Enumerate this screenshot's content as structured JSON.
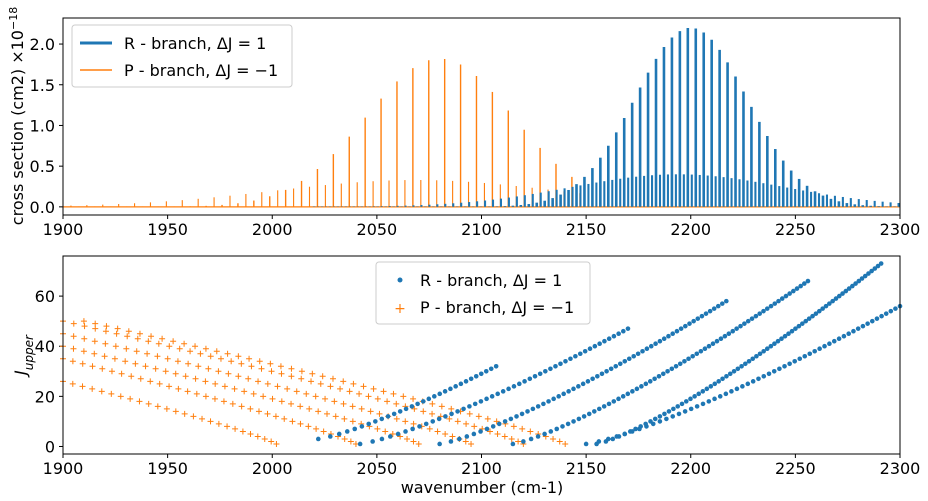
{
  "colors": {
    "r_branch": "#1f77b4",
    "p_branch": "#ff7f0e"
  },
  "chart_data": [
    {
      "type": "line",
      "title": "",
      "xlabel": "",
      "ylabel": "cross section (cm2) ×10",
      "ylabel_exponent": "−18",
      "xlim": [
        1900,
        2300
      ],
      "ylim": [
        -0.1,
        2.32
      ],
      "xticks": [
        "1900",
        "1950",
        "2000",
        "2050",
        "2100",
        "2150",
        "2200",
        "2250",
        "2300"
      ],
      "yticks": [
        "0.0",
        "0.5",
        "1.0",
        "1.5",
        "2.0"
      ],
      "legend_position": "top-left",
      "series": [
        {
          "name": "R - branch, ΔJ = 1",
          "line_style": "stick spectrum, thick",
          "center": 2200,
          "width": 38,
          "peak": 2.2,
          "x_range": [
            2020,
            2300
          ],
          "line_spacing": 3.8,
          "sub_band_peak": 0.4
        },
        {
          "name": "P - branch, ΔJ = −1",
          "line_style": "stick spectrum, thin",
          "center": 2080,
          "width": 50,
          "peak": 1.82,
          "x_range": [
            1900,
            2145
          ],
          "line_spacing": 7.6,
          "sub_band_peak": 0.33
        }
      ]
    },
    {
      "type": "scatter",
      "title": "",
      "xlabel": "wavenumber (cm-1)",
      "ylabel": "J",
      "ylabel_subscript": "upper",
      "xlim": [
        1900,
        2300
      ],
      "ylim": [
        -3,
        76
      ],
      "xticks": [
        "1900",
        "1950",
        "2000",
        "2050",
        "2100",
        "2150",
        "2200",
        "2250",
        "2300"
      ],
      "yticks": [
        "0",
        "20",
        "40",
        "60"
      ],
      "legend_position": "top-center",
      "series": [
        {
          "name": "R - branch, ΔJ = 1",
          "marker": "dot",
          "bands": [
            {
              "x_start": 2022,
              "x_end": 2107,
              "j_start": 3,
              "j_end": 32
            },
            {
              "x_start": 2042,
              "x_end": 2170,
              "j_start": 1,
              "j_end": 47
            },
            {
              "x_start": 2080,
              "x_end": 2217,
              "j_start": 1,
              "j_end": 58
            },
            {
              "x_start": 2115,
              "x_end": 2256,
              "j_start": 1,
              "j_end": 66
            },
            {
              "x_start": 2155,
              "x_end": 2291,
              "j_start": 1,
              "j_end": 73
            },
            {
              "x_start": 2150,
              "x_end": 2300,
              "j_start": 1,
              "j_end": 56
            }
          ]
        },
        {
          "name": "P - branch, ΔJ = −1",
          "marker": "plus",
          "bands": [
            {
              "x_start": 1900,
              "x_end": 2002,
              "j_start": 26,
              "j_end": 1
            },
            {
              "x_start": 1900,
              "x_end": 2040,
              "j_start": 35,
              "j_end": 1
            },
            {
              "x_start": 1900,
              "x_end": 2070,
              "j_start": 40,
              "j_end": 1
            },
            {
              "x_start": 1900,
              "x_end": 2095,
              "j_start": 45,
              "j_end": 1
            },
            {
              "x_start": 1900,
              "x_end": 2120,
              "j_start": 50,
              "j_end": 1
            },
            {
              "x_start": 1910,
              "x_end": 2140,
              "j_start": 50,
              "j_end": 1
            }
          ]
        }
      ]
    }
  ]
}
